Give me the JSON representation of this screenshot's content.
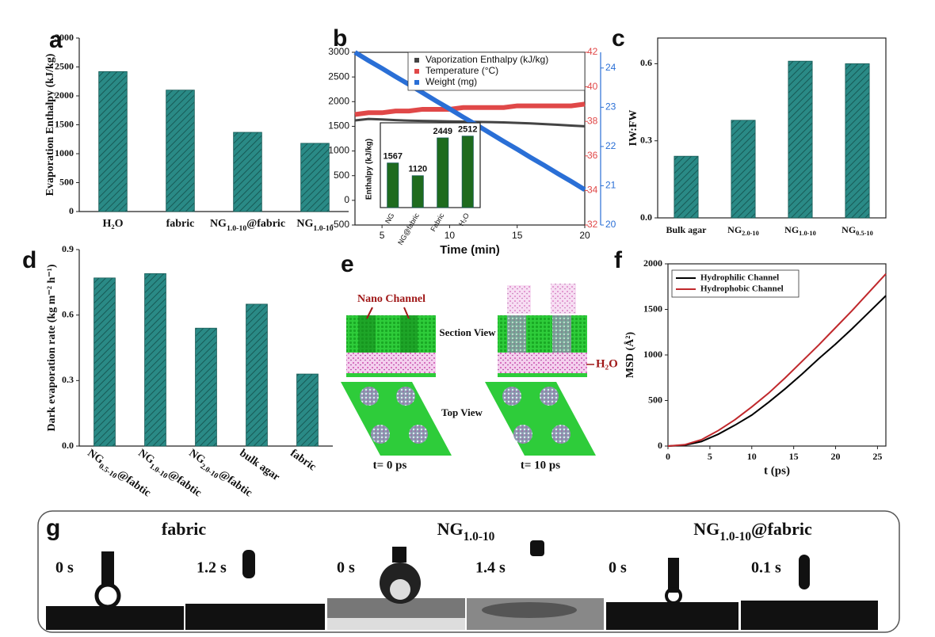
{
  "panel_labels": [
    "a",
    "b",
    "c",
    "d",
    "e",
    "f",
    "g"
  ],
  "chart_data": [
    {
      "type": "bar",
      "categories": [
        "H₂O",
        "fabric",
        "NG1.0-10@fabric",
        "NG1.0-10"
      ],
      "values": [
        2420,
        2100,
        1370,
        1180
      ],
      "color": "#2a8a86",
      "ylabel": "Evaporation Enthalpy (kJ/kg)",
      "ylim": [
        0,
        3000
      ],
      "yticks": [
        0,
        500,
        1000,
        1500,
        2000,
        2500,
        3000
      ]
    },
    {
      "type": "line",
      "xlabel": "Time (min)",
      "x": [
        3,
        4,
        5,
        6,
        7,
        8,
        9,
        10,
        11,
        12,
        13,
        14,
        15,
        16,
        17,
        18,
        19,
        20
      ],
      "xlim": [
        3,
        20
      ],
      "xticks": [
        5,
        10,
        15,
        20
      ],
      "ylim": [
        -500,
        3000
      ],
      "yticks": [
        -500,
        0,
        500,
        1000,
        1500,
        2000,
        2500,
        3000
      ],
      "y2lim": [
        32,
        42
      ],
      "y2ticks": [
        32,
        34,
        36,
        38,
        40,
        42
      ],
      "y2color": "#e04848",
      "y3lim": [
        20,
        24.4
      ],
      "y3ticks": [
        20,
        21,
        22,
        23,
        24
      ],
      "y3color": "#2a6fd6",
      "series": [
        {
          "name": "Vaporization Enthalpy (kJ/kg)",
          "color": "#444444",
          "values": [
            1620,
            1650,
            1640,
            1625,
            1615,
            1610,
            1605,
            1600,
            1595,
            1590,
            1585,
            1580,
            1570,
            1560,
            1545,
            1530,
            1515,
            1500
          ]
        },
        {
          "name": "Temperature (°C)",
          "color": "#e04848",
          "axis": "y2",
          "values": [
            38.4,
            38.5,
            38.5,
            38.6,
            38.6,
            38.7,
            38.7,
            38.7,
            38.8,
            38.8,
            38.8,
            38.8,
            38.9,
            38.9,
            38.9,
            38.9,
            38.9,
            39.0
          ]
        },
        {
          "name": "Weight (mg)",
          "color": "#2a6fd6",
          "axis": "y3",
          "values": [
            24.4,
            24.19,
            23.99,
            23.78,
            23.58,
            23.37,
            23.16,
            22.96,
            22.75,
            22.55,
            22.34,
            22.13,
            21.93,
            21.72,
            21.52,
            21.31,
            21.11,
            20.9
          ]
        }
      ]
    },
    {
      "type": "bar",
      "categories": [
        "NG",
        "NG@fabric",
        "Fabric",
        "H₂O"
      ],
      "values": [
        1567,
        1120,
        2449,
        2512
      ],
      "color": "#1e6b1e",
      "ylabel": "Enthalpy (kJ/kg)",
      "ylim": [
        0,
        2700
      ]
    },
    {
      "type": "bar",
      "categories": [
        "Bulk agar",
        "NG2.0-10",
        "NG1.0-10",
        "NG0.5-10"
      ],
      "values": [
        0.24,
        0.38,
        0.61,
        0.6
      ],
      "color": "#2a8a86",
      "ylabel": "IW:FW",
      "ylim": [
        0,
        0.7
      ],
      "yticks": [
        {
          "value": 0,
          "label": "0.0"
        },
        {
          "value": 0.3,
          "label": "0.3"
        },
        {
          "value": 0.6,
          "label": "0.6"
        }
      ]
    },
    {
      "type": "bar",
      "categories": [
        "NG0.5-10@fabtic",
        "NG1.0-10@fabtic",
        "NG2.0-10@fabtic",
        "bulk agar",
        "fabric"
      ],
      "values": [
        0.77,
        0.79,
        0.54,
        0.65,
        0.33
      ],
      "color": "#2a8a86",
      "ylabel": "Dark evaporation rate (kg m⁻² h⁻¹)",
      "ylim": [
        0,
        0.9
      ],
      "yticks": [
        {
          "value": 0,
          "label": "0.0"
        },
        {
          "value": 0.3,
          "label": "0.3"
        },
        {
          "value": 0.6,
          "label": "0.6"
        },
        {
          "value": 0.9,
          "label": "0.9"
        }
      ]
    },
    {
      "type": "line",
      "xlabel": "t (ps)",
      "ylabel": "MSD (Å²)",
      "x": [
        0,
        2,
        4,
        6,
        8,
        10,
        12,
        14,
        16,
        18,
        20,
        22,
        24,
        26
      ],
      "xlim": [
        0,
        26
      ],
      "xticks": [
        0,
        5,
        10,
        15,
        20,
        25
      ],
      "ylim": [
        0,
        2000
      ],
      "yticks": [
        0,
        500,
        1000,
        1500,
        2000
      ],
      "series": [
        {
          "name": "Hydrophilic Channel",
          "color": "#000000",
          "values": [
            0,
            10,
            50,
            130,
            230,
            340,
            480,
            630,
            790,
            960,
            1120,
            1290,
            1470,
            1650
          ]
        },
        {
          "name": "Hydrophobic Channel",
          "color": "#c0282c",
          "values": [
            0,
            15,
            70,
            170,
            290,
            430,
            580,
            750,
            930,
            1110,
            1300,
            1490,
            1690,
            1890
          ]
        }
      ]
    }
  ],
  "panel_e": {
    "nano_channel": "Nano Channel",
    "section_view": "Section View",
    "water": "H₂O",
    "top_view": "Top View",
    "t0": "t= 0 ps",
    "t10": "t= 10 ps"
  },
  "panel_g": {
    "titles": [
      "fabric",
      "NG1.0-10",
      "NG1.0-10@fabric"
    ],
    "times": [
      "0 s",
      "1.2 s",
      "0 s",
      "1.4 s",
      "0 s",
      "0.1 s"
    ]
  }
}
